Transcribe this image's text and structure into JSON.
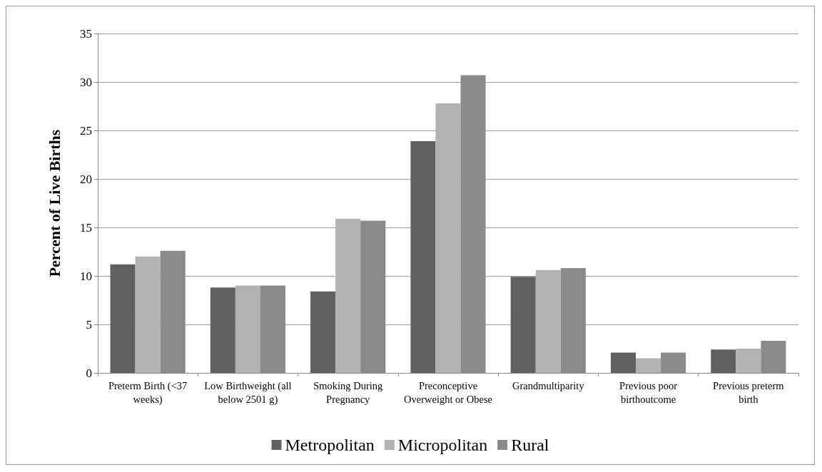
{
  "chart_data": {
    "type": "bar",
    "ylabel": "Percent of Live Births",
    "categories": [
      "Preterm Birth (<37 weeks)",
      "Low Birthweight (all below 2501 g)",
      "Smoking During Pregnancy",
      "Preconceptive Overweight or Obese",
      "Grandmultiparity",
      "Previous poor birthoutcome",
      "Previous preterm birth"
    ],
    "series": [
      {
        "name": "Metropolitan",
        "color": "#606060",
        "values": [
          11.2,
          8.8,
          8.4,
          23.9,
          9.9,
          2.1,
          2.4
        ]
      },
      {
        "name": "Micropolitan",
        "color": "#b2b2b2",
        "values": [
          12.0,
          9.0,
          15.9,
          27.8,
          10.6,
          1.5,
          2.5
        ]
      },
      {
        "name": "Rural",
        "color": "#8a8a8a",
        "values": [
          12.6,
          9.0,
          15.7,
          30.7,
          10.8,
          2.1,
          3.3
        ]
      }
    ],
    "ylim": [
      0,
      35
    ],
    "yticks": [
      0,
      5,
      10,
      15,
      20,
      25,
      30,
      35
    ],
    "grid": "y",
    "legend": "bottom"
  }
}
